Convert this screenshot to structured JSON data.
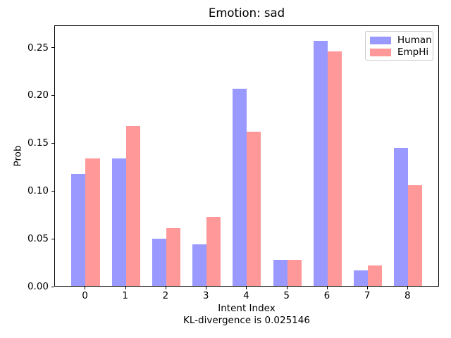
{
  "title": "Emotion: sad",
  "chart_data": {
    "type": "bar",
    "categories": [
      "0",
      "1",
      "2",
      "3",
      "4",
      "5",
      "6",
      "7",
      "8"
    ],
    "series": [
      {
        "name": "Human",
        "color": "#9999ff",
        "values": [
          0.118,
          0.134,
          0.05,
          0.044,
          0.207,
          0.028,
          0.257,
          0.017,
          0.145
        ]
      },
      {
        "name": "EmpHi",
        "color": "#ff9999",
        "values": [
          0.134,
          0.168,
          0.061,
          0.073,
          0.162,
          0.028,
          0.246,
          0.022,
          0.106
        ]
      }
    ],
    "title": "Emotion: sad",
    "xlabel": "Intent Index",
    "xlabel_line2": "KL-divergence is 0.025146",
    "ylabel": "Prob",
    "xlim": [
      -0.76,
      8.78
    ],
    "ylim": [
      0,
      0.2732
    ],
    "yticks": [
      0,
      0.05,
      0.1,
      0.15,
      0.2,
      0.25
    ],
    "ytick_labels": [
      "0.00",
      "0.05",
      "0.10",
      "0.15",
      "0.20",
      "0.25"
    ],
    "bar_width": 0.35,
    "grid": false,
    "legend_position": "upper right"
  }
}
